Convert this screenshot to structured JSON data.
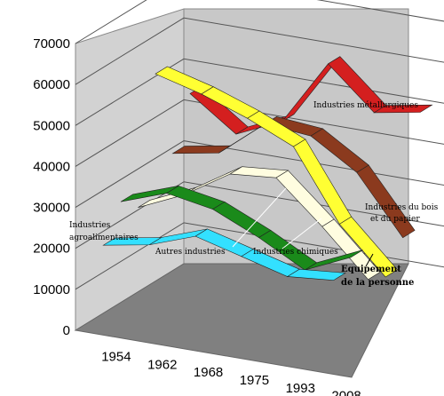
{
  "chart_data": {
    "type": "line",
    "style": "3d-ribbon",
    "categories": [
      "1954",
      "1962",
      "1968",
      "1975",
      "1993",
      "2008"
    ],
    "ylim": [
      0,
      70000
    ],
    "yticks": [
      "0",
      "10000",
      "20000",
      "30000",
      "40000",
      "50000",
      "60000",
      "70000"
    ],
    "grid": true,
    "legend": "none",
    "series": [
      {
        "name": "Industries métallurgiques",
        "color": "#d41f1f",
        "values": [
          45000,
          37000,
          42000,
          58000,
          48000,
          50000
        ]
      },
      {
        "name": "Industries du bois et du papier",
        "color": "#8b3a1e",
        "values": [
          33000,
          35000,
          44000,
          43000,
          36000,
          22000
        ]
      },
      {
        "name": "Equipement de la personne",
        "color": "#ffff33",
        "values": [
          55000,
          52000,
          48000,
          43000,
          26000,
          15000
        ]
      },
      {
        "name": "Industries chimiques",
        "color": "#fffde0",
        "values": [
          25000,
          30000,
          37000,
          38000,
          28000,
          17000
        ]
      },
      {
        "name": "Industries agroalimentaires",
        "color": "#1a8a1a",
        "values": [
          29000,
          33000,
          31000,
          26000,
          20000,
          25000
        ]
      },
      {
        "name": "Autres industries",
        "color": "#33e0ff",
        "values": [
          21000,
          23000,
          27000,
          24000,
          21000,
          22000
        ]
      }
    ],
    "annotations": [
      {
        "id": "metal",
        "text": "Industries métallurgiques"
      },
      {
        "id": "bois1",
        "text": "Industries du bois"
      },
      {
        "id": "bois2",
        "text": "et du papier"
      },
      {
        "id": "agro1",
        "text": "Industries"
      },
      {
        "id": "agro2",
        "text": "agroalimentaires"
      },
      {
        "id": "autres",
        "text": "Autres industries"
      },
      {
        "id": "chim",
        "text": "Industries chimiques"
      },
      {
        "id": "equip1",
        "text": "Equipement"
      },
      {
        "id": "equip2",
        "text": "de la personne"
      }
    ]
  }
}
